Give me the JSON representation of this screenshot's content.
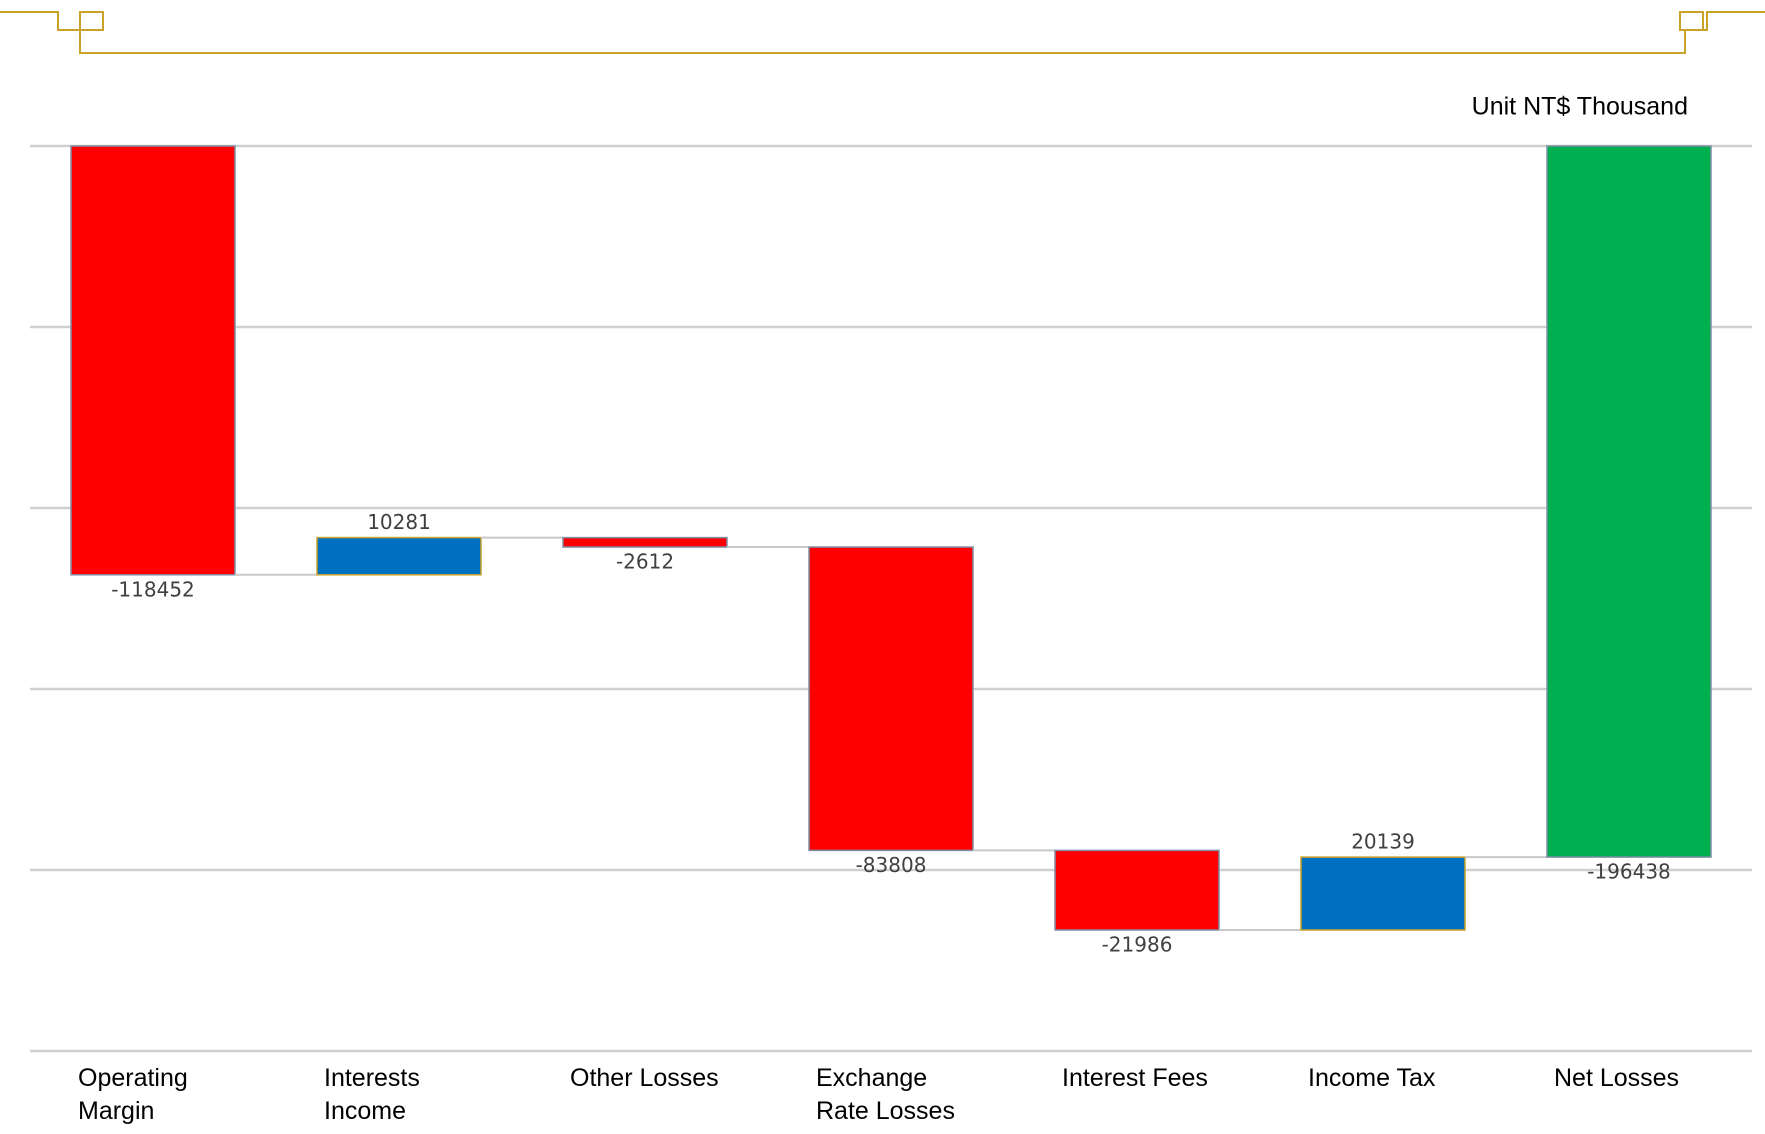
{
  "chart_data": {
    "type": "waterfall",
    "unit_label": "Unit NT$ Thousand",
    "categories": [
      "Operating Margin",
      "Interests Income",
      "Other Losses",
      "Exchange Rate Losses",
      "Interest Fees",
      "Income Tax",
      "Net Losses"
    ],
    "values": [
      -118452,
      10281,
      -2612,
      -83808,
      -21986,
      20139,
      -196438
    ],
    "totals": [
      false,
      false,
      false,
      false,
      false,
      false,
      true
    ],
    "colors": [
      "#ff0000",
      "#0070c0",
      "#ff0000",
      "#ff0000",
      "#ff0000",
      "#0070c0",
      "#00b050"
    ],
    "ylim": [
      -250000,
      0
    ],
    "yticks": [
      0,
      -50000,
      -100000,
      -150000,
      -200000,
      -250000
    ],
    "grid": true
  }
}
